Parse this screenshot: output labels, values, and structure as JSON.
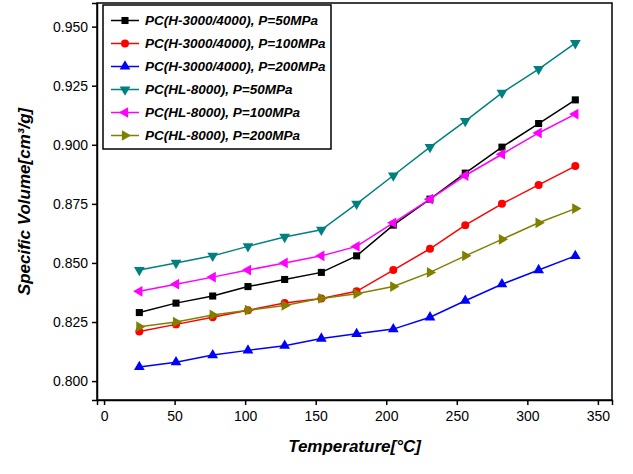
{
  "chart_data": {
    "type": "line",
    "x_label": "Temperature[°C]",
    "y_label": "Specific Volume[cm³/g]",
    "x": [
      25,
      51,
      77,
      102,
      128,
      154,
      179,
      205,
      231,
      256,
      282,
      308,
      334
    ],
    "xlim": [
      -5,
      360
    ],
    "xticks": [
      0,
      50,
      100,
      150,
      200,
      250,
      300,
      350
    ],
    "ylim": [
      0.792,
      0.96
    ],
    "yticks": [
      {
        "value": 0.8,
        "label": "0.800"
      },
      0.825,
      {
        "value": 0.85,
        "label": "0.850"
      },
      0.875,
      {
        "value": 0.9,
        "label": "0.900"
      },
      0.925,
      {
        "value": 0.95,
        "label": "0.950"
      }
    ],
    "grid": false,
    "legend": "upper left",
    "series": [
      {
        "name": "PC(H-3000/4000), P=50MPa",
        "color": "#000000",
        "marker": "square",
        "values": [
          0.829,
          0.833,
          0.836,
          0.84,
          0.843,
          0.846,
          0.853,
          0.866,
          0.877,
          0.888,
          0.899,
          0.909,
          0.919
        ]
      },
      {
        "name": "PC(H-3000/4000), P=100MPa",
        "color": "#ff0000",
        "marker": "circle",
        "values": [
          0.821,
          0.824,
          0.827,
          0.83,
          0.833,
          0.835,
          0.838,
          0.847,
          0.856,
          0.866,
          0.875,
          0.883,
          0.891
        ]
      },
      {
        "name": "PC(H-3000/4000), P=200MPa",
        "color": "#0000ff",
        "marker": "triangle-up",
        "values": [
          0.806,
          0.808,
          0.811,
          0.813,
          0.815,
          0.818,
          0.82,
          0.822,
          0.827,
          0.834,
          0.841,
          0.847,
          0.853
        ]
      },
      {
        "name": "PC(HL-8000), P=50MPa",
        "color": "#008080",
        "marker": "triangle-down",
        "values": [
          0.847,
          0.85,
          0.853,
          0.857,
          0.861,
          0.864,
          0.875,
          0.887,
          0.899,
          0.91,
          0.922,
          0.932,
          0.943
        ]
      },
      {
        "name": "PC(HL-8000), P=100MPa",
        "color": "#ff00ff",
        "marker": "triangle-left",
        "values": [
          0.838,
          0.841,
          0.844,
          0.847,
          0.85,
          0.853,
          0.857,
          0.867,
          0.877,
          0.887,
          0.896,
          0.905,
          0.913
        ]
      },
      {
        "name": "PC(HL-8000), P=200MPa",
        "color": "#808000",
        "marker": "triangle-right",
        "values": [
          0.823,
          0.825,
          0.828,
          0.83,
          0.832,
          0.835,
          0.837,
          0.84,
          0.846,
          0.853,
          0.86,
          0.867,
          0.873
        ]
      }
    ]
  }
}
